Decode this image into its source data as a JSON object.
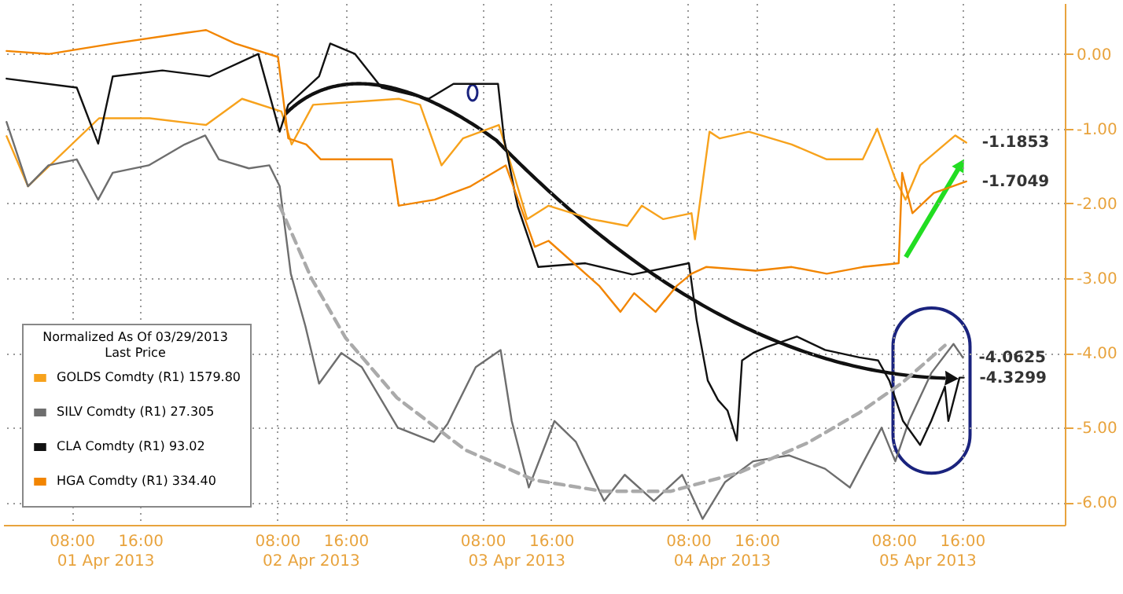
{
  "chart_data": {
    "type": "line",
    "legend_title": "Normalized As Of 03/29/2013\nLast Price",
    "legend": "bottom left",
    "grid": true,
    "line_style": "solid",
    "xlim": [
      "2013-04-01T00:00",
      "2013-04-06T04:00"
    ],
    "ylim": [
      -6.3,
      0.68
    ],
    "xticks": [
      {
        "value": "2013-04-01T08:00",
        "label": "08:00"
      },
      {
        "value": "2013-04-01T16:00",
        "label": "16:00"
      },
      {
        "value": "2013-04-02T08:00",
        "label": "08:00"
      },
      {
        "value": "2013-04-02T16:00",
        "label": "16:00"
      },
      {
        "value": "2013-04-03T08:00",
        "label": "08:00"
      },
      {
        "value": "2013-04-03T16:00",
        "label": "16:00"
      },
      {
        "value": "2013-04-04T08:00",
        "label": "08:00"
      },
      {
        "value": "2013-04-04T16:00",
        "label": "16:00"
      },
      {
        "value": "2013-04-05T08:00",
        "label": "08:00"
      },
      {
        "value": "2013-04-05T16:00",
        "label": "16:00"
      }
    ],
    "yticks": [
      {
        "value": 0,
        "label": "0.00"
      },
      {
        "value": -1,
        "label": "-1.00"
      },
      {
        "value": -2,
        "label": "-2.00"
      },
      {
        "value": -3,
        "label": "-3.00"
      },
      {
        "value": -4,
        "label": "-4.00"
      },
      {
        "value": -5,
        "label": "-5.00"
      },
      {
        "value": -6,
        "label": "-6.00"
      }
    ],
    "series": [
      {
        "name": "GOLDS Comdty (R1) 1579.80",
        "color": "#f7a21c",
        "x": [
          "2013-04-01T00:24",
          "2013-04-01T02:54",
          "2013-04-01T11:12",
          "2013-04-01T17:06",
          "2013-04-01T23:42",
          "2013-04-02T03:54",
          "2013-04-02T08:30",
          "2013-04-02T09:42",
          "2013-04-02T12:12",
          "2013-04-02T22:12",
          "2013-04-03T00:42",
          "2013-04-03T03:12",
          "2013-04-03T05:42",
          "2013-04-03T09:54",
          "2013-04-03T11:36",
          "2013-04-03T13:12",
          "2013-04-03T15:42",
          "2013-04-03T20:42",
          "2013-04-04T00:54",
          "2013-04-04T02:36",
          "2013-04-04T05:06",
          "2013-04-04T08:24",
          "2013-04-04T08:48",
          "2013-04-04T10:30",
          "2013-04-04T11:42",
          "2013-04-04T15:06",
          "2013-04-04T20:06",
          "2013-04-05T00:12",
          "2013-04-05T04:24",
          "2013-04-05T06:06",
          "2013-04-05T08:12",
          "2013-04-05T09:24",
          "2013-04-05T11:06",
          "2013-04-05T15:12",
          "2013-04-05T16:30"
        ],
        "values": [
          -1.1,
          -1.77,
          -0.86,
          -0.86,
          -0.95,
          -0.6,
          -0.77,
          -1.21,
          -0.68,
          -0.6,
          -0.68,
          -1.49,
          -1.13,
          -0.95,
          -1.59,
          -2.21,
          -2.03,
          -2.21,
          -2.3,
          -2.03,
          -2.21,
          -2.13,
          -2.48,
          -1.04,
          -1.13,
          -1.04,
          -1.21,
          -1.41,
          -1.41,
          -1.0,
          -1.67,
          -1.95,
          -1.49,
          -1.09,
          -1.1853
        ]
      },
      {
        "name": "SILV Comdty (R1) 27.305",
        "color": "#6e6e6e",
        "x": [
          "2013-04-01T00:24",
          "2013-04-01T02:54",
          "2013-04-01T05:18",
          "2013-04-01T08:36",
          "2013-04-01T11:06",
          "2013-04-01T12:48",
          "2013-04-01T17:00",
          "2013-04-01T21:12",
          "2013-04-01T23:36",
          "2013-04-02T01:12",
          "2013-04-02T04:42",
          "2013-04-02T07:06",
          "2013-04-02T08:18",
          "2013-04-02T09:36",
          "2013-04-02T11:18",
          "2013-04-02T12:54",
          "2013-04-02T15:30",
          "2013-04-02T17:54",
          "2013-04-02T22:06",
          "2013-04-03T02:18",
          "2013-04-03T03:54",
          "2013-04-03T07:12",
          "2013-04-03T10:06",
          "2013-04-03T11:24",
          "2013-04-03T13:24",
          "2013-04-03T16:24",
          "2013-04-03T18:54",
          "2013-04-03T22:12",
          "2013-04-04T00:36",
          "2013-04-04T04:00",
          "2013-04-04T07:18",
          "2013-04-04T09:42",
          "2013-04-04T12:18",
          "2013-04-04T15:36",
          "2013-04-04T19:48",
          "2013-04-05T00:00",
          "2013-04-05T02:54",
          "2013-04-05T06:36",
          "2013-04-05T08:12",
          "2013-04-05T09:48",
          "2013-04-05T12:24",
          "2013-04-05T15:00",
          "2013-04-05T16:06"
        ],
        "values": [
          -0.91,
          -1.77,
          -1.49,
          -1.41,
          -1.95,
          -1.59,
          -1.49,
          -1.21,
          -1.09,
          -1.41,
          -1.53,
          -1.49,
          -1.77,
          -2.94,
          -3.64,
          -4.41,
          -4.0,
          -4.19,
          -5.0,
          -5.19,
          -4.95,
          -4.19,
          -3.96,
          -4.91,
          -5.8,
          -4.91,
          -5.19,
          -5.98,
          -5.63,
          -5.98,
          -5.63,
          -6.22,
          -5.73,
          -5.45,
          -5.37,
          -5.55,
          -5.8,
          -5.0,
          -5.45,
          -4.91,
          -4.27,
          -3.88,
          -4.0625
        ]
      },
      {
        "name": "CLA Comdty (R1) 93.02",
        "color": "#111111",
        "x": [
          "2013-04-01T00:24",
          "2013-04-01T08:36",
          "2013-04-01T11:06",
          "2013-04-01T12:48",
          "2013-04-01T18:36",
          "2013-04-02T00:06",
          "2013-04-02T05:48",
          "2013-04-02T08:18",
          "2013-04-02T09:18",
          "2013-04-02T12:54",
          "2013-04-02T14:12",
          "2013-04-02T17:06",
          "2013-04-02T20:12",
          "2013-04-03T01:42",
          "2013-04-03T04:36",
          "2013-04-03T09:48",
          "2013-04-03T10:30",
          "2013-04-03T12:06",
          "2013-04-03T14:30",
          "2013-04-03T20:00",
          "2013-04-04T01:30",
          "2013-04-04T08:06",
          "2013-04-04T09:00",
          "2013-04-04T10:18",
          "2013-04-04T11:30",
          "2013-04-04T12:36",
          "2013-04-04T13:42",
          "2013-04-04T14:18",
          "2013-04-04T15:36",
          "2013-04-04T17:12",
          "2013-04-04T20:42",
          "2013-04-05T00:00",
          "2013-04-05T04:00",
          "2013-04-05T06:12",
          "2013-04-05T07:30",
          "2013-04-05T09:06",
          "2013-04-05T11:06",
          "2013-04-05T12:24",
          "2013-04-05T14:00",
          "2013-04-05T14:24",
          "2013-04-05T15:42",
          "2013-04-05T16:12"
        ],
        "values": [
          -0.33,
          -0.45,
          -1.2,
          -0.3,
          -0.22,
          -0.3,
          0.0,
          -1.04,
          -0.68,
          -0.3,
          0.14,
          0.0,
          -0.45,
          -0.6,
          -0.4,
          -0.4,
          -1.13,
          -2.04,
          -2.85,
          -2.8,
          -2.95,
          -2.8,
          -3.56,
          -4.37,
          -4.63,
          -4.77,
          -5.17,
          -4.1,
          -4.0,
          -3.92,
          -3.78,
          -3.96,
          -4.06,
          -4.1,
          -4.37,
          -4.91,
          -5.23,
          -4.91,
          -4.45,
          -4.91,
          -4.33,
          -4.3299
        ]
      },
      {
        "name": "HGA Comdty (R1) 334.40",
        "color": "#f28500",
        "x": [
          "2013-04-01T00:24",
          "2013-04-01T05:24",
          "2013-04-01T12:54",
          "2013-04-01T21:12",
          "2013-04-01T23:42",
          "2013-04-02T03:06",
          "2013-04-02T08:06",
          "2013-04-02T09:18",
          "2013-04-02T11:24",
          "2013-04-02T13:06",
          "2013-04-02T21:24",
          "2013-04-02T22:12",
          "2013-04-03T02:24",
          "2013-04-03T06:36",
          "2013-04-03T10:42",
          "2013-04-03T12:24",
          "2013-04-03T14:06",
          "2013-04-03T15:42",
          "2013-04-03T21:36",
          "2013-04-04T00:06",
          "2013-04-04T01:42",
          "2013-04-04T04:12",
          "2013-04-04T06:42",
          "2013-04-04T08:24",
          "2013-04-04T10:06",
          "2013-04-04T15:54",
          "2013-04-04T20:06",
          "2013-04-05T00:12",
          "2013-04-05T04:24",
          "2013-04-05T08:36",
          "2013-04-05T09:00",
          "2013-04-05T10:12",
          "2013-04-05T12:42",
          "2013-04-05T16:30"
        ],
        "values": [
          0.04,
          0.0,
          0.14,
          0.28,
          0.32,
          0.14,
          -0.04,
          -1.13,
          -1.21,
          -1.41,
          -1.41,
          -2.03,
          -1.95,
          -1.77,
          -1.49,
          -2.03,
          -2.58,
          -2.5,
          -3.1,
          -3.45,
          -3.2,
          -3.45,
          -3.1,
          -2.94,
          -2.85,
          -2.9,
          -2.85,
          -2.94,
          -2.85,
          -2.8,
          -1.59,
          -2.13,
          -1.86,
          -1.7049
        ]
      },
      {
        "color": "#aaaaaa",
        "line_style": "dashed",
        "x": [
          "2013-04-02T08:18",
          "2013-04-02T12:00",
          "2013-04-02T16:00",
          "2013-04-02T22:00",
          "2013-04-03T06:00",
          "2013-04-03T14:00",
          "2013-04-03T22:00",
          "2013-04-04T06:00",
          "2013-04-04T14:00",
          "2013-04-04T22:00",
          "2013-04-05T04:00",
          "2013-04-05T09:00",
          "2013-04-05T14:00"
        ],
        "values": [
          -2.03,
          -3.0,
          -3.8,
          -4.6,
          -5.3,
          -5.7,
          -5.85,
          -5.85,
          -5.6,
          -5.2,
          -4.8,
          -4.4,
          -3.9
        ]
      }
    ],
    "annotations": [
      {
        "text": "-1.1853",
        "x": "2013-04-05T16:30",
        "y": -1.1853
      },
      {
        "text": "-1.7049",
        "x": "2013-04-05T16:30",
        "y": -1.7049
      },
      {
        "text": "-4.0625",
        "x": "2013-04-05T16:06",
        "y": -4.0625
      },
      {
        "text": "-4.3299",
        "x": "2013-04-05T16:12",
        "y": -4.3299
      },
      "01 Apr 2013",
      "02 Apr 2013",
      "03 Apr 2013",
      "04 Apr 2013",
      "05 Apr 2013"
    ]
  }
}
